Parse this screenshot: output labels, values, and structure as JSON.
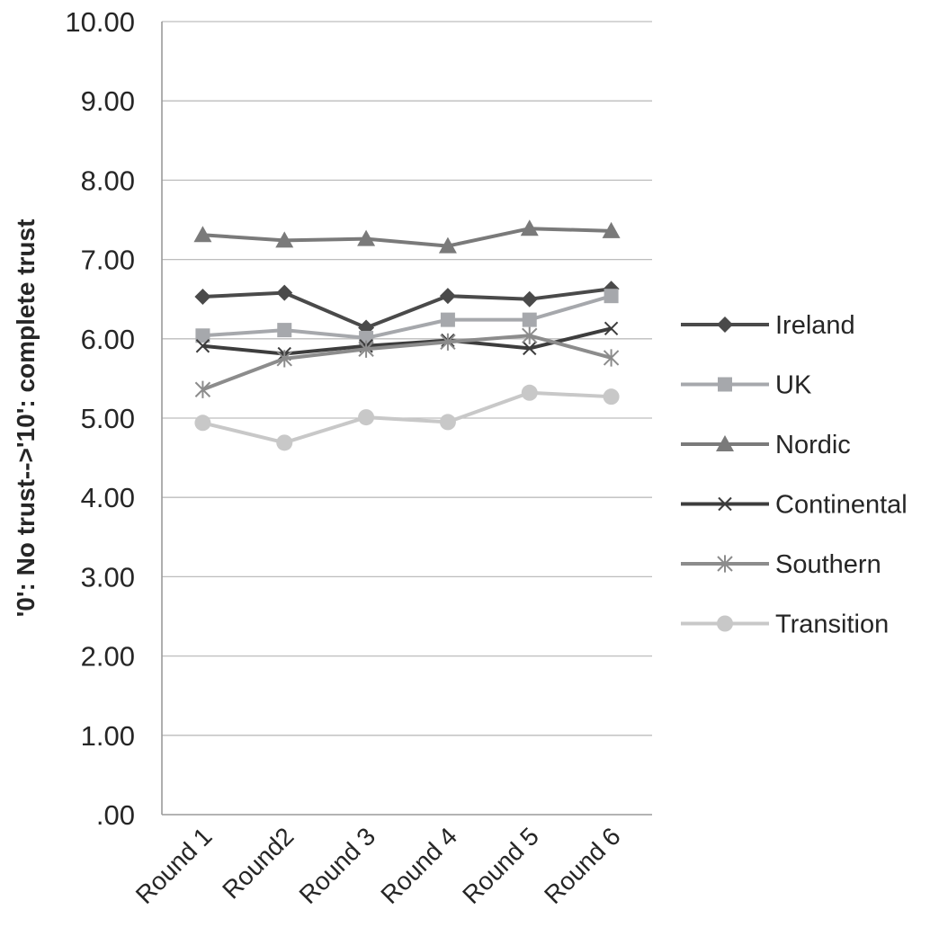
{
  "chart_data": {
    "type": "line",
    "title": "",
    "xlabel": "",
    "ylabel": "'0':  No trust-->'10':  complete trust",
    "ylim": [
      0,
      10
    ],
    "grid": true,
    "legend_position": "right",
    "categories": [
      "Round 1",
      "Round2",
      "Round 3",
      "Round 4",
      "Round 5",
      "Round 6"
    ],
    "y_ticks": [
      ".00",
      "1.00",
      "2.00",
      "3.00",
      "4.00",
      "5.00",
      "6.00",
      "7.00",
      "8.00",
      "9.00",
      "10.00"
    ],
    "series": [
      {
        "name": "Ireland",
        "marker": "diamond",
        "color": "#4a4a4a",
        "values": [
          6.53,
          6.58,
          6.14,
          6.54,
          6.5,
          6.63
        ]
      },
      {
        "name": "UK",
        "marker": "square",
        "color": "#a6a8ac",
        "values": [
          6.04,
          6.11,
          6.01,
          6.24,
          6.24,
          6.54
        ]
      },
      {
        "name": "Nordic",
        "marker": "triangle",
        "color": "#7a7a7a",
        "values": [
          7.31,
          7.24,
          7.26,
          7.17,
          7.39,
          7.36
        ]
      },
      {
        "name": "Continental",
        "marker": "x",
        "color": "#3d3d3d",
        "values": [
          5.91,
          5.81,
          5.91,
          5.98,
          5.88,
          6.13
        ]
      },
      {
        "name": "Southern",
        "marker": "star",
        "color": "#8c8c8c",
        "values": [
          5.36,
          5.75,
          5.87,
          5.96,
          6.04,
          5.76
        ]
      },
      {
        "name": "Transition",
        "marker": "circle",
        "color": "#c8c8c8",
        "values": [
          4.94,
          4.69,
          5.01,
          4.95,
          5.32,
          5.27
        ]
      }
    ]
  }
}
